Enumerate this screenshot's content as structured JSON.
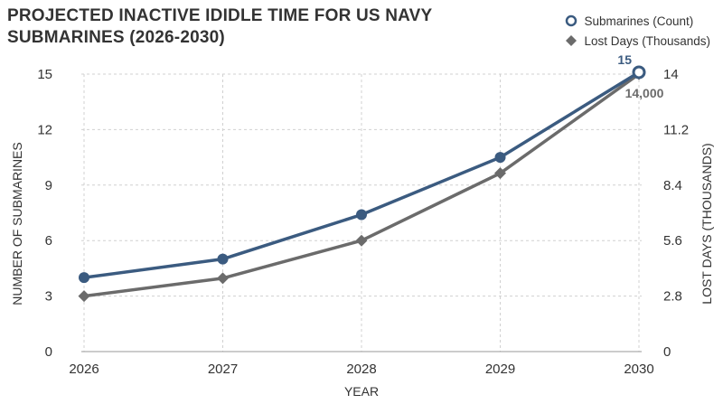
{
  "title_lines": [
    "PROJECTED INACTIVE IDIDLE TIME FOR US NAVY",
    "SUBMARINES (2026-2030)"
  ],
  "colors": {
    "submarines": "#3b5b80",
    "lost_days": "#6b6b6b",
    "grid": "#d0d0d0",
    "text": "#333333"
  },
  "chart_data": {
    "type": "line",
    "categories": [
      "2026",
      "2027",
      "2028",
      "2029",
      "2030"
    ],
    "xlabel": "YEAR",
    "ylabel_left": "NUMBER OF SUBMARINES",
    "ylabel_right": "LOST DAYS (THOUSANDS)",
    "ylim_left": [
      0,
      15
    ],
    "yticks_left": [
      "0",
      "3",
      "6",
      "9",
      "12",
      "15"
    ],
    "ylim_right": [
      0,
      14
    ],
    "yticks_right": [
      "0",
      "2.8",
      "5.6",
      "8.4",
      "11.2",
      "14"
    ],
    "grid": true,
    "legend_position": "top-right",
    "series": [
      {
        "name": "Submarines (Count)",
        "axis": "left",
        "marker": "circle",
        "values": [
          4,
          5,
          7.4,
          10.5,
          15.1
        ]
      },
      {
        "name": "Lost Days (Thousands)",
        "axis": "right",
        "marker": "diamond",
        "values": [
          2.8,
          3.7,
          5.6,
          9.0,
          14.0
        ]
      }
    ],
    "annotations": [
      {
        "text": "15",
        "series": 0,
        "index": 4
      },
      {
        "text": "14,000",
        "series": 1,
        "index": 4
      }
    ]
  }
}
